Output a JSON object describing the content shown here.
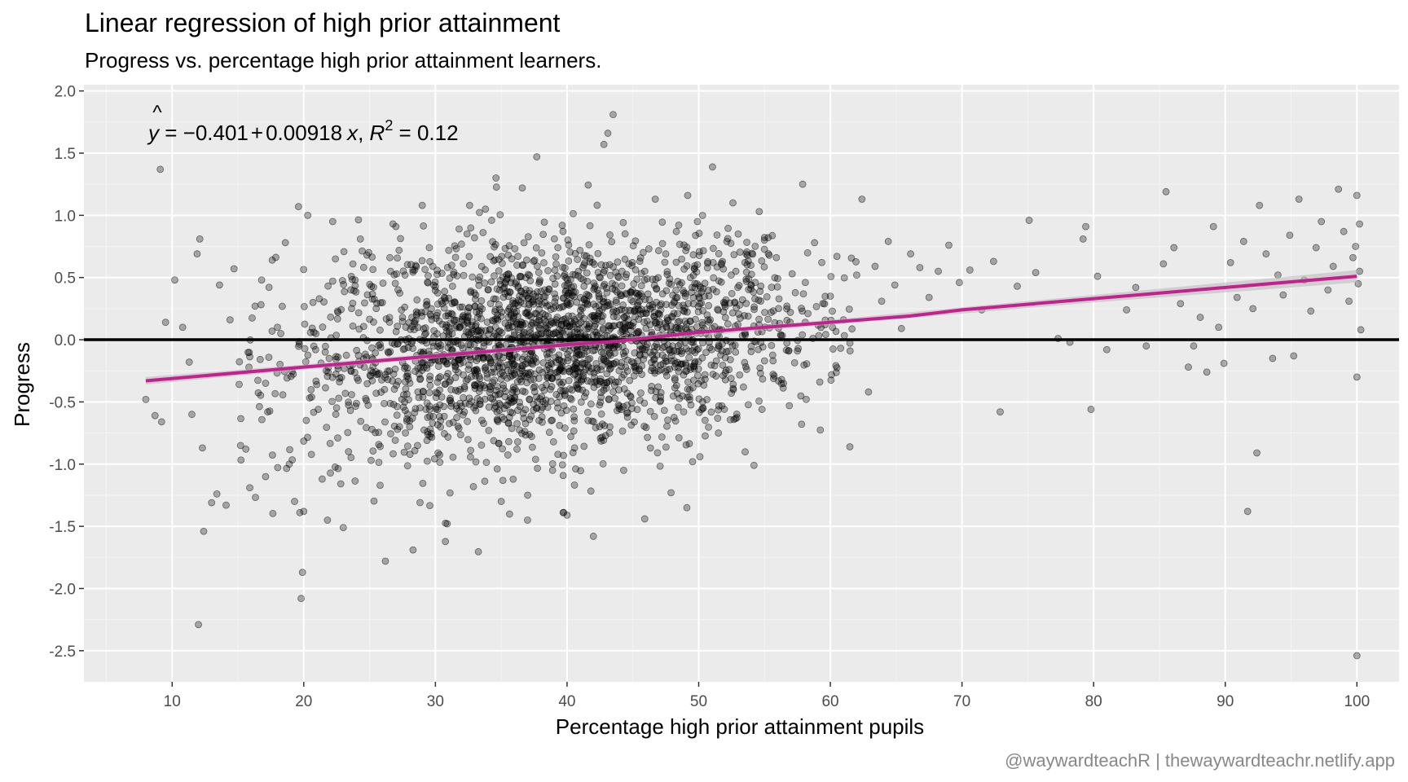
{
  "title": "Linear regression of high prior attainment",
  "subtitle": "Progress vs. percentage high prior attainment learners.",
  "caption": "@waywardteachR | thewaywardteachr.netlify.app",
  "equation": {
    "yhat": "y",
    "text1": " = ",
    "minus": "−",
    "intercept": "0.401",
    "plus": "+",
    "slope": "0.00918",
    "x": "x",
    "comma": ", ",
    "r": "R",
    "sup": "2",
    "r2_text": " = 0.12"
  },
  "colors": {
    "panel": "#ebebeb",
    "grid_major": "#ffffff",
    "grid_minor": "#f4f4f4",
    "points": "#000000",
    "fit_line": "#c4208f",
    "ribbon": "#bdbdbd",
    "zero_line": "#000000"
  },
  "chart_data": {
    "type": "scatter",
    "title": "Linear regression of high prior attainment",
    "subtitle": "Progress vs. percentage high prior attainment learners.",
    "xlabel": "Percentage high prior attainment pupils",
    "ylabel": "Progress",
    "xlim": [
      3.3,
      103.2
    ],
    "ylim": [
      -2.75,
      2.05
    ],
    "xticks": [
      10,
      20,
      30,
      40,
      50,
      60,
      70,
      80,
      90,
      100
    ],
    "yticks": [
      -2.5,
      -2.0,
      -1.5,
      -1.0,
      -0.5,
      0.0,
      0.5,
      1.0,
      1.5,
      2.0
    ],
    "ytick_labels": [
      "-2.5",
      "-2.0",
      "-1.5",
      "-1.0",
      "-0.5",
      "0.0",
      "0.5",
      "1.0",
      "1.5",
      "2.0"
    ],
    "xtick_labels": [
      "10",
      "20",
      "30",
      "40",
      "50",
      "60",
      "70",
      "80",
      "90",
      "100"
    ],
    "grid": true,
    "hline": 0,
    "fit": {
      "x": [
        8,
        20,
        30,
        40,
        44,
        50,
        60,
        66,
        70,
        80,
        90,
        100
      ],
      "y": [
        -0.33,
        -0.22,
        -0.13,
        -0.04,
        -0.01,
        0.06,
        0.14,
        0.19,
        0.24,
        0.33,
        0.42,
        0.51
      ]
    },
    "fit_band": {
      "x": [
        8,
        20,
        40,
        60,
        80,
        100
      ],
      "lower": [
        -0.36,
        -0.24,
        -0.06,
        0.12,
        0.3,
        0.46
      ],
      "upper": [
        -0.3,
        -0.2,
        -0.02,
        0.16,
        0.36,
        0.56
      ]
    },
    "points": [
      [
        8,
        -0.48
      ],
      [
        8.7,
        -0.61
      ],
      [
        9.2,
        -0.66
      ],
      [
        9.1,
        1.37
      ],
      [
        9.5,
        0.14
      ],
      [
        10.2,
        0.48
      ],
      [
        10.8,
        0.1
      ],
      [
        11.3,
        -0.18
      ],
      [
        11.5,
        -0.6
      ],
      [
        11.9,
        0.69
      ],
      [
        12.1,
        0.81
      ],
      [
        12.3,
        -0.87
      ],
      [
        12.0,
        -2.29
      ],
      [
        12.4,
        -1.54
      ],
      [
        13.0,
        -1.31
      ],
      [
        13.4,
        -1.24
      ],
      [
        13.6,
        0.44
      ],
      [
        14.1,
        -1.33
      ],
      [
        14.4,
        0.16
      ],
      [
        14.7,
        0.57
      ],
      [
        15.2,
        -0.85
      ],
      [
        15.6,
        -0.88
      ],
      [
        15.9,
        -1.19
      ],
      [
        16.3,
        0.27
      ],
      [
        16.8,
        0.48
      ],
      [
        17.1,
        -0.35
      ],
      [
        17.6,
        0.64
      ],
      [
        18.0,
        0.1
      ],
      [
        18.6,
        0.78
      ],
      [
        18.9,
        -1.0
      ],
      [
        19.3,
        -1.3
      ],
      [
        19.7,
        -1.39
      ],
      [
        19.9,
        -1.87
      ],
      [
        19.8,
        -2.08
      ],
      [
        20.0,
        -1.38
      ],
      [
        19.6,
        1.07
      ],
      [
        20.3,
        1.0
      ],
      [
        20.7,
        0.3
      ],
      [
        21.1,
        -0.56
      ],
      [
        21.4,
        -1.12
      ],
      [
        21.8,
        -1.45
      ],
      [
        22.2,
        0.95
      ],
      [
        22.6,
        -0.14
      ],
      [
        23.0,
        -1.51
      ],
      [
        23.4,
        -0.9
      ],
      [
        23.9,
        0.48
      ],
      [
        24.3,
        0.81
      ],
      [
        24.8,
        0.68
      ],
      [
        25.2,
        -0.33
      ],
      [
        25.5,
        -0.43
      ],
      [
        25.8,
        -1.17
      ],
      [
        26.2,
        -1.78
      ],
      [
        26.6,
        0.55
      ],
      [
        27.0,
        0.91
      ],
      [
        27.5,
        0.18
      ],
      [
        27.9,
        -0.27
      ],
      [
        28.3,
        -1.69
      ],
      [
        28.6,
        0.32
      ],
      [
        29.0,
        1.08
      ],
      [
        29.4,
        -0.74
      ],
      [
        29.8,
        0.59
      ],
      [
        30.2,
        -0.91
      ],
      [
        30.6,
        0.03
      ],
      [
        30.9,
        -1.48
      ],
      [
        31.3,
        0.43
      ],
      [
        31.8,
        0.89
      ],
      [
        32.2,
        -0.58
      ],
      [
        32.6,
        1.08
      ],
      [
        33.0,
        0.27
      ],
      [
        33.4,
        -0.52
      ],
      [
        33.8,
        1.05
      ],
      [
        34.2,
        -0.17
      ],
      [
        34.6,
        1.3
      ],
      [
        35.0,
        -1.3
      ],
      [
        35.4,
        0.52
      ],
      [
        35.8,
        0.65
      ],
      [
        36.2,
        -0.88
      ],
      [
        36.6,
        1.22
      ],
      [
        37.0,
        -1.45
      ],
      [
        37.4,
        0.32
      ],
      [
        37.7,
        1.47
      ],
      [
        38.1,
        -0.62
      ],
      [
        38.5,
        0.06
      ],
      [
        38.9,
        -1.05
      ],
      [
        39.3,
        0.74
      ],
      [
        39.7,
        -1.39
      ],
      [
        40.0,
        -1.41
      ],
      [
        40.4,
        0.19
      ],
      [
        40.8,
        -0.32
      ],
      [
        41.2,
        0.58
      ],
      [
        41.6,
        -0.65
      ],
      [
        42.0,
        -1.58
      ],
      [
        42.4,
        0.21
      ],
      [
        42.8,
        1.57
      ],
      [
        43.1,
        1.66
      ],
      [
        43.5,
        1.81
      ],
      [
        43.9,
        -0.06
      ],
      [
        44.3,
        -1.05
      ],
      [
        44.7,
        0.61
      ],
      [
        45.1,
        -0.29
      ],
      [
        45.5,
        0.31
      ],
      [
        45.9,
        -1.44
      ],
      [
        46.3,
        0.12
      ],
      [
        46.7,
        1.13
      ],
      [
        47.1,
        -0.46
      ],
      [
        47.5,
        0.69
      ],
      [
        47.9,
        -1.23
      ],
      [
        48.3,
        0.87
      ],
      [
        48.7,
        -0.11
      ],
      [
        49.1,
        -1.35
      ],
      [
        49.5,
        0.42
      ],
      [
        49.9,
        0.95
      ],
      [
        50.3,
        -0.5
      ],
      [
        50.7,
        0.16
      ],
      [
        51.1,
        0.62
      ],
      [
        51.5,
        -0.75
      ],
      [
        51.9,
        0.3
      ],
      [
        52.3,
        -0.24
      ],
      [
        52.6,
        1.1
      ],
      [
        53.0,
        0.85
      ],
      [
        53.4,
        -0.38
      ],
      [
        53.8,
        0.49
      ],
      [
        54.2,
        -1.01
      ],
      [
        54.6,
        1.03
      ],
      [
        55.0,
        -0.17
      ],
      [
        55.5,
        0.22
      ],
      [
        55.9,
        0.66
      ],
      [
        56.3,
        -0.32
      ],
      [
        56.7,
        0.27
      ],
      [
        57.1,
        0.53
      ],
      [
        57.5,
        -0.09
      ],
      [
        57.9,
        1.25
      ],
      [
        58.3,
        0.21
      ],
      [
        58.8,
        0.78
      ],
      [
        59.2,
        -0.34
      ],
      [
        59.6,
        0.12
      ],
      [
        60.0,
        0.35
      ],
      [
        60.5,
        0.67
      ],
      [
        61.0,
        0.16
      ],
      [
        61.5,
        -0.09
      ],
      [
        62.0,
        0.52
      ],
      [
        62.4,
        1.13
      ],
      [
        62.9,
        -0.42
      ],
      [
        63.4,
        0.59
      ],
      [
        63.9,
        0.31
      ],
      [
        64.4,
        0.79
      ],
      [
        64.9,
        0.44
      ],
      [
        65.4,
        0.09
      ],
      [
        66.1,
        0.69
      ],
      [
        66.8,
        0.58
      ],
      [
        67.5,
        0.34
      ],
      [
        68.2,
        0.55
      ],
      [
        69.0,
        0.76
      ],
      [
        69.8,
        0.46
      ],
      [
        70.6,
        0.56
      ],
      [
        71.5,
        0.24
      ],
      [
        72.4,
        0.63
      ],
      [
        72.9,
        -0.58
      ],
      [
        74.2,
        0.43
      ],
      [
        75.1,
        0.96
      ],
      [
        75.6,
        0.54
      ],
      [
        77.3,
        0.01
      ],
      [
        78.2,
        -0.02
      ],
      [
        79.2,
        0.81
      ],
      [
        79.4,
        0.91
      ],
      [
        79.8,
        -0.56
      ],
      [
        80.3,
        0.51
      ],
      [
        81.0,
        -0.08
      ],
      [
        82.5,
        0.24
      ],
      [
        83.2,
        0.42
      ],
      [
        84.0,
        -0.05
      ],
      [
        85.3,
        0.61
      ],
      [
        85.5,
        1.19
      ],
      [
        86.1,
        0.74
      ],
      [
        86.6,
        0.29
      ],
      [
        87.2,
        -0.22
      ],
      [
        87.6,
        -0.05
      ],
      [
        88.1,
        0.18
      ],
      [
        88.6,
        -0.26
      ],
      [
        89.1,
        0.91
      ],
      [
        89.5,
        0.1
      ],
      [
        89.9,
        -0.19
      ],
      [
        90.4,
        0.62
      ],
      [
        90.9,
        0.34
      ],
      [
        91.4,
        0.79
      ],
      [
        91.7,
        -1.38
      ],
      [
        92.1,
        0.25
      ],
      [
        92.6,
        1.08
      ],
      [
        92.4,
        -0.91
      ],
      [
        93.1,
        0.69
      ],
      [
        93.6,
        -0.15
      ],
      [
        94.0,
        0.52
      ],
      [
        94.4,
        0.36
      ],
      [
        94.9,
        0.84
      ],
      [
        95.2,
        -0.13
      ],
      [
        95.6,
        1.13
      ],
      [
        96.0,
        0.48
      ],
      [
        96.5,
        0.23
      ],
      [
        96.9,
        0.74
      ],
      [
        97.3,
        0.95
      ],
      [
        97.8,
        0.4
      ],
      [
        98.2,
        0.59
      ],
      [
        98.6,
        1.21
      ],
      [
        99.0,
        0.87
      ],
      [
        99.4,
        0.31
      ],
      [
        99.7,
        0.66
      ],
      [
        100.0,
        1.16
      ],
      [
        100.0,
        -0.3
      ],
      [
        100.0,
        -2.54
      ],
      [
        100.2,
        0.93
      ],
      [
        100.3,
        0.08
      ],
      [
        100.1,
        0.45
      ],
      [
        99.9,
        0.75
      ],
      [
        100.2,
        0.55
      ]
    ],
    "cloud": {
      "x_mean": 39.0,
      "x_sd": 10.0,
      "y_sd": 0.4,
      "n": 2400
    }
  }
}
